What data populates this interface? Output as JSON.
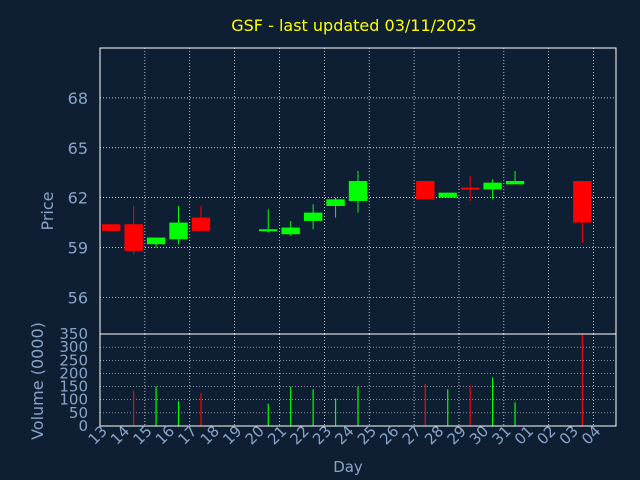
{
  "colors": {
    "background": "#0f1f33",
    "frame": "#ffffff",
    "grid": "#ffffff",
    "title": "#ffff00",
    "label": "#8aa4c8",
    "up": "#00ff00",
    "down": "#ff0000"
  },
  "chart_data": [
    {
      "type": "candlestick",
      "title": "GSF - last updated 03/11/2025",
      "ylabel": "Price",
      "ylim": [
        53.8,
        71
      ],
      "yticks": [
        56,
        59,
        62,
        65,
        68
      ],
      "grid": true,
      "categories": [
        "13",
        "14",
        "15",
        "16",
        "17",
        "18",
        "19",
        "20",
        "21",
        "22",
        "23",
        "24",
        "25",
        "26",
        "27",
        "28",
        "29",
        "30",
        "31",
        "01",
        "02",
        "03",
        "04"
      ],
      "candles": [
        {
          "x": "13",
          "open": 60.4,
          "high": 60.4,
          "low": 60.0,
          "close": 60.0
        },
        {
          "x": "14",
          "open": 60.4,
          "high": 61.5,
          "low": 58.6,
          "close": 58.8
        },
        {
          "x": "15",
          "open": 59.2,
          "high": 59.6,
          "low": 59.0,
          "close": 59.6
        },
        {
          "x": "16",
          "open": 59.5,
          "high": 61.5,
          "low": 59.2,
          "close": 60.5
        },
        {
          "x": "17",
          "open": 60.8,
          "high": 61.5,
          "low": 60.0,
          "close": 60.0
        },
        {
          "x": "20",
          "open": 60.0,
          "high": 61.3,
          "low": 59.9,
          "close": 60.1
        },
        {
          "x": "21",
          "open": 59.8,
          "high": 60.6,
          "low": 59.7,
          "close": 60.2
        },
        {
          "x": "22",
          "open": 60.6,
          "high": 61.6,
          "low": 60.1,
          "close": 61.1
        },
        {
          "x": "23",
          "open": 61.5,
          "high": 62.0,
          "low": 60.8,
          "close": 61.9
        },
        {
          "x": "24",
          "open": 61.8,
          "high": 63.6,
          "low": 61.1,
          "close": 63.0
        },
        {
          "x": "27",
          "open": 63.0,
          "high": 63.0,
          "low": 61.9,
          "close": 61.9
        },
        {
          "x": "28",
          "open": 62.0,
          "high": 62.3,
          "low": 62.0,
          "close": 62.3
        },
        {
          "x": "29",
          "open": 62.6,
          "high": 63.3,
          "low": 61.8,
          "close": 62.5
        },
        {
          "x": "30",
          "open": 62.5,
          "high": 63.1,
          "low": 61.9,
          "close": 62.9
        },
        {
          "x": "31",
          "open": 62.8,
          "high": 63.6,
          "low": 62.8,
          "close": 63.0
        },
        {
          "x": "03",
          "open": 63.0,
          "high": 63.0,
          "low": 59.3,
          "close": 60.5
        }
      ]
    },
    {
      "type": "bar",
      "ylabel": "Volume (0000)",
      "xlabel": "Day",
      "ylim": [
        0,
        350
      ],
      "yticks": [
        0,
        50,
        100,
        150,
        200,
        250,
        300,
        350
      ],
      "categories": [
        "13",
        "14",
        "15",
        "16",
        "17",
        "18",
        "19",
        "20",
        "21",
        "22",
        "23",
        "24",
        "25",
        "26",
        "27",
        "28",
        "29",
        "30",
        "31",
        "01",
        "02",
        "03",
        "04"
      ],
      "bars": [
        {
          "x": "14",
          "value": 135,
          "direction": "down"
        },
        {
          "x": "15",
          "value": 150,
          "direction": "up"
        },
        {
          "x": "16",
          "value": 95,
          "direction": "up"
        },
        {
          "x": "17",
          "value": 125,
          "direction": "down"
        },
        {
          "x": "20",
          "value": 85,
          "direction": "up"
        },
        {
          "x": "21",
          "value": 150,
          "direction": "up"
        },
        {
          "x": "22",
          "value": 140,
          "direction": "up"
        },
        {
          "x": "23",
          "value": 105,
          "direction": "up"
        },
        {
          "x": "24",
          "value": 150,
          "direction": "up"
        },
        {
          "x": "27",
          "value": 160,
          "direction": "down"
        },
        {
          "x": "28",
          "value": 140,
          "direction": "up"
        },
        {
          "x": "29",
          "value": 155,
          "direction": "down"
        },
        {
          "x": "30",
          "value": 185,
          "direction": "up"
        },
        {
          "x": "31",
          "value": 90,
          "direction": "up"
        },
        {
          "x": "03",
          "value": 350,
          "direction": "down"
        }
      ]
    }
  ]
}
